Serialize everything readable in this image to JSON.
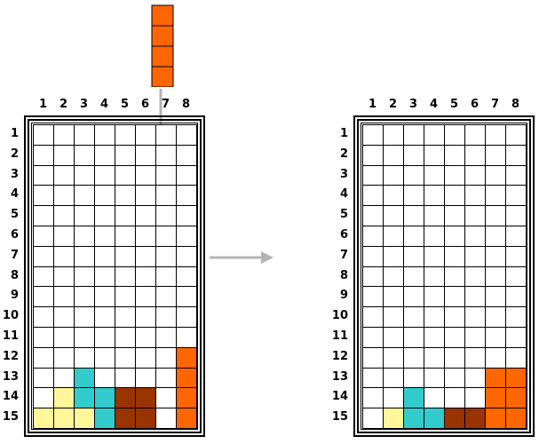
{
  "columns": [
    "1",
    "2",
    "3",
    "4",
    "5",
    "6",
    "7",
    "8"
  ],
  "rows": [
    "1",
    "2",
    "3",
    "4",
    "5",
    "6",
    "7",
    "8",
    "9",
    "10",
    "11",
    "12",
    "13",
    "14",
    "15"
  ],
  "colors": {
    "yellow": "#fff799",
    "cyan": "#33cccc",
    "brown": "#993300",
    "orange": "#ff6600",
    "arrow": "#b3b3b3"
  },
  "piece": {
    "name": "I-piece vertical",
    "color": "orange",
    "cells": 4
  },
  "boards": {
    "before": {
      "filled": [
        [
          13,
          3,
          "cyan"
        ],
        [
          14,
          2,
          "yellow"
        ],
        [
          14,
          3,
          "cyan"
        ],
        [
          14,
          4,
          "cyan"
        ],
        [
          14,
          5,
          "brown"
        ],
        [
          14,
          6,
          "brown"
        ],
        [
          15,
          1,
          "yellow"
        ],
        [
          15,
          2,
          "yellow"
        ],
        [
          15,
          3,
          "yellow"
        ],
        [
          15,
          4,
          "cyan"
        ],
        [
          15,
          5,
          "brown"
        ],
        [
          15,
          6,
          "brown"
        ],
        [
          12,
          8,
          "orange"
        ],
        [
          13,
          8,
          "orange"
        ],
        [
          14,
          8,
          "orange"
        ],
        [
          15,
          8,
          "orange"
        ]
      ]
    },
    "after": {
      "filled": [
        [
          13,
          7,
          "orange"
        ],
        [
          13,
          8,
          "orange"
        ],
        [
          14,
          3,
          "cyan"
        ],
        [
          14,
          7,
          "orange"
        ],
        [
          14,
          8,
          "orange"
        ],
        [
          15,
          2,
          "yellow"
        ],
        [
          15,
          3,
          "cyan"
        ],
        [
          15,
          4,
          "cyan"
        ],
        [
          15,
          5,
          "brown"
        ],
        [
          15,
          6,
          "brown"
        ],
        [
          15,
          7,
          "orange"
        ],
        [
          15,
          8,
          "orange"
        ]
      ]
    }
  }
}
